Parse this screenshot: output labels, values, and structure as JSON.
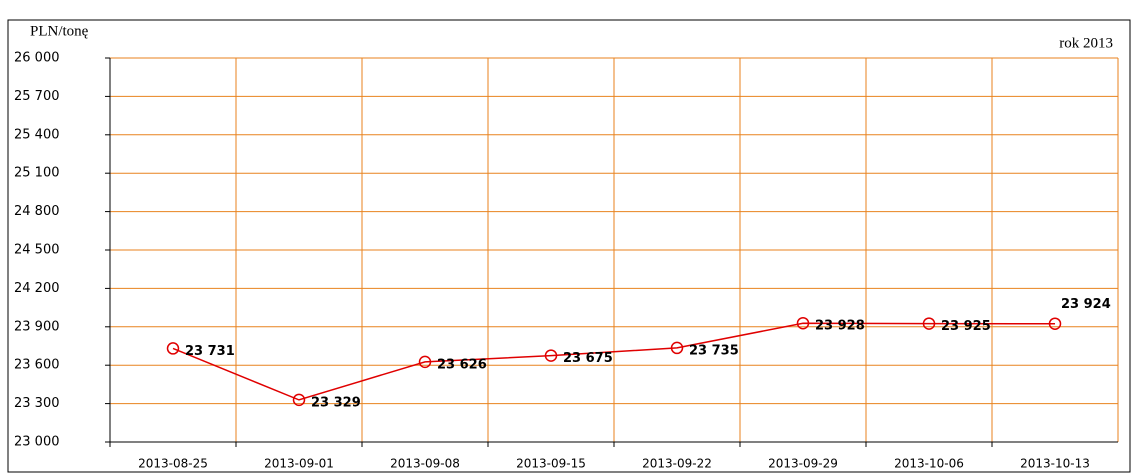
{
  "chart_data": {
    "type": "line",
    "y_label": "PLN/tonę",
    "annotation": "rok 2013",
    "categories": [
      "2013-08-25",
      "2013-09-01",
      "2013-09-08",
      "2013-09-15",
      "2013-09-22",
      "2013-09-29",
      "2013-10-06",
      "2013-10-13"
    ],
    "series": [
      {
        "color": "#e00000",
        "values": [
          23731,
          23329,
          23626,
          23675,
          23735,
          23928,
          23925,
          23924
        ],
        "value_labels": [
          "23 731",
          "23 329",
          "23 626",
          "23 675",
          "23 735",
          "23 928",
          "23 925",
          "23 924"
        ]
      }
    ],
    "ylim": [
      23000,
      26000
    ],
    "yticks": [
      {
        "value": 23000,
        "label": "23 000"
      },
      {
        "value": 23300,
        "label": "23 300"
      },
      {
        "value": 23600,
        "label": "23 600"
      },
      {
        "value": 23900,
        "label": "23 900"
      },
      {
        "value": 24200,
        "label": "24 200"
      },
      {
        "value": 24500,
        "label": "24 500"
      },
      {
        "value": 24800,
        "label": "24 800"
      },
      {
        "value": 25100,
        "label": "25 100"
      },
      {
        "value": 25400,
        "label": "25 400"
      },
      {
        "value": 25700,
        "label": "25 700"
      },
      {
        "value": 26000,
        "label": "26 000"
      }
    ],
    "grid": true,
    "grid_color": "#e8821e"
  }
}
